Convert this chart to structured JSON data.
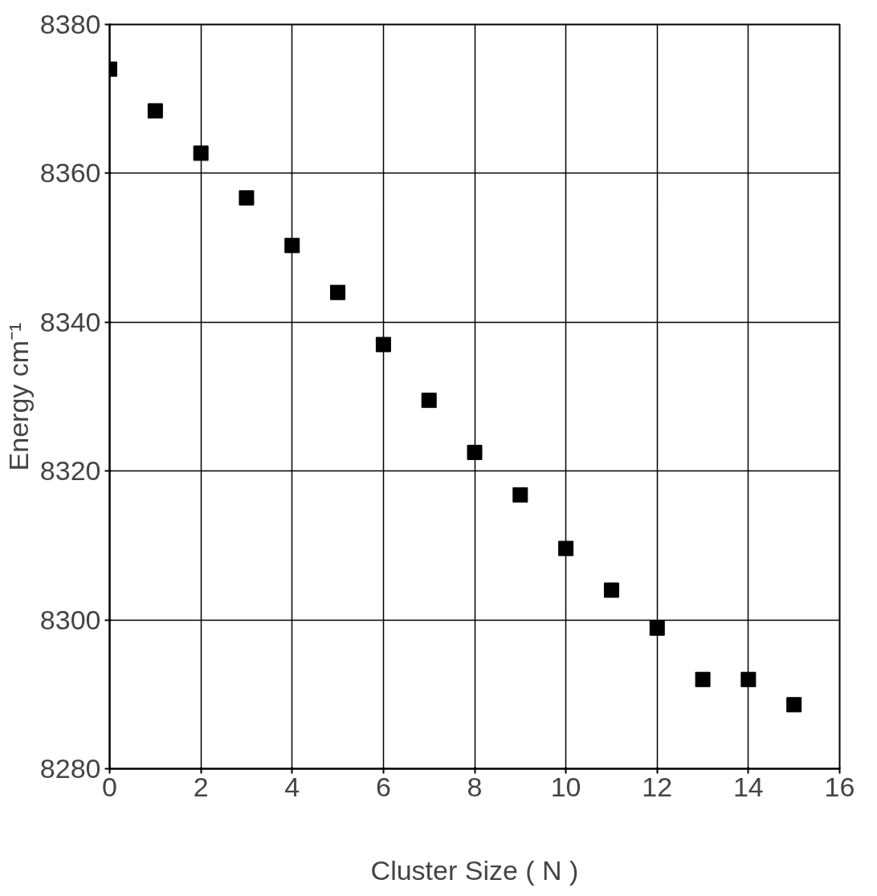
{
  "chart_data": {
    "type": "scatter",
    "xlabel": "Cluster Size ( N )",
    "ylabel": "Energy cm⁻¹",
    "x": [
      0,
      1,
      2,
      3,
      4,
      5,
      6,
      7,
      8,
      9,
      10,
      11,
      12,
      13,
      14,
      15
    ],
    "series": [
      {
        "color": "#000000",
        "values": [
          8374,
          8368.4,
          8362.7,
          8356.7,
          8350.3,
          8344,
          8337,
          8329.5,
          8322.5,
          8316.8,
          8309.6,
          8304,
          8298.9,
          8292,
          8292,
          8288.6
        ]
      }
    ],
    "xlim": [
      0,
      16
    ],
    "ylim": [
      8280,
      8380
    ],
    "xticks": [
      0,
      2,
      4,
      6,
      8,
      10,
      12,
      14,
      16
    ],
    "yticks": [
      8280,
      8300,
      8320,
      8340,
      8360,
      8380
    ],
    "grid": true,
    "marker": "square"
  }
}
